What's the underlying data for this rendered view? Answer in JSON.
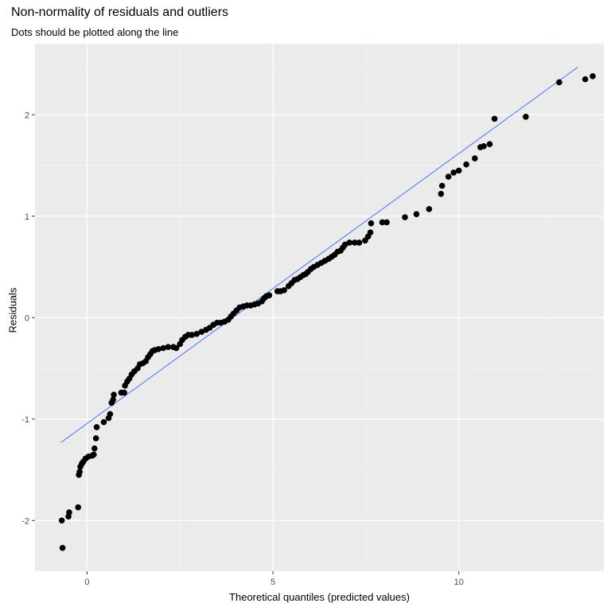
{
  "chart_data": {
    "type": "scatter",
    "title": "Non-normality of residuals and outliers",
    "subtitle": "Dots should be plotted along the line",
    "xlabel": "Theoretical quantiles (predicted values)",
    "ylabel": "Residuals",
    "xlim": [
      -1.4,
      13.9
    ],
    "ylim": [
      -2.5,
      2.7
    ],
    "x_ticks": [
      0,
      5,
      10
    ],
    "y_ticks": [
      -2,
      -1,
      0,
      1,
      2
    ],
    "grid": true,
    "background": "#ebebeb",
    "point_color": "#000000",
    "line_color": "#3366ff",
    "reference_line": {
      "x": [
        -0.7,
        13.2
      ],
      "y": [
        -1.23,
        2.47
      ]
    },
    "points": [
      [
        -0.66,
        -2.27
      ],
      [
        -0.68,
        -2.0
      ],
      [
        -0.5,
        -1.96
      ],
      [
        -0.48,
        -1.92
      ],
      [
        -0.24,
        -1.87
      ],
      [
        -0.22,
        -1.55
      ],
      [
        -0.2,
        -1.52
      ],
      [
        -0.18,
        -1.47
      ],
      [
        -0.14,
        -1.44
      ],
      [
        -0.1,
        -1.42
      ],
      [
        -0.04,
        -1.39
      ],
      [
        0.04,
        -1.37
      ],
      [
        0.14,
        -1.36
      ],
      [
        0.18,
        -1.35
      ],
      [
        0.2,
        -1.29
      ],
      [
        0.24,
        -1.19
      ],
      [
        0.26,
        -1.08
      ],
      [
        0.45,
        -1.03
      ],
      [
        0.58,
        -0.99
      ],
      [
        0.62,
        -0.95
      ],
      [
        0.66,
        -0.84
      ],
      [
        0.7,
        -0.81
      ],
      [
        0.72,
        -0.76
      ],
      [
        0.92,
        -0.74
      ],
      [
        1.0,
        -0.74
      ],
      [
        1.02,
        -0.67
      ],
      [
        1.08,
        -0.63
      ],
      [
        1.14,
        -0.6
      ],
      [
        1.2,
        -0.56
      ],
      [
        1.27,
        -0.53
      ],
      [
        1.36,
        -0.5
      ],
      [
        1.42,
        -0.46
      ],
      [
        1.5,
        -0.45
      ],
      [
        1.58,
        -0.43
      ],
      [
        1.64,
        -0.39
      ],
      [
        1.7,
        -0.36
      ],
      [
        1.76,
        -0.33
      ],
      [
        1.82,
        -0.32
      ],
      [
        1.92,
        -0.31
      ],
      [
        2.05,
        -0.3
      ],
      [
        2.18,
        -0.29
      ],
      [
        2.32,
        -0.29
      ],
      [
        2.4,
        -0.3
      ],
      [
        2.5,
        -0.26
      ],
      [
        2.56,
        -0.22
      ],
      [
        2.64,
        -0.19
      ],
      [
        2.72,
        -0.17
      ],
      [
        2.82,
        -0.17
      ],
      [
        2.95,
        -0.16
      ],
      [
        3.08,
        -0.14
      ],
      [
        3.2,
        -0.12
      ],
      [
        3.3,
        -0.1
      ],
      [
        3.4,
        -0.07
      ],
      [
        3.5,
        -0.05
      ],
      [
        3.6,
        -0.05
      ],
      [
        3.7,
        -0.04
      ],
      [
        3.8,
        -0.02
      ],
      [
        3.87,
        0.01
      ],
      [
        3.94,
        0.04
      ],
      [
        4.02,
        0.07
      ],
      [
        4.1,
        0.1
      ],
      [
        4.2,
        0.11
      ],
      [
        4.3,
        0.12
      ],
      [
        4.4,
        0.12
      ],
      [
        4.5,
        0.13
      ],
      [
        4.6,
        0.14
      ],
      [
        4.7,
        0.16
      ],
      [
        4.76,
        0.19
      ],
      [
        4.82,
        0.21
      ],
      [
        4.9,
        0.22
      ],
      [
        5.12,
        0.26
      ],
      [
        5.2,
        0.26
      ],
      [
        5.3,
        0.27
      ],
      [
        5.42,
        0.31
      ],
      [
        5.5,
        0.34
      ],
      [
        5.58,
        0.37
      ],
      [
        5.66,
        0.38
      ],
      [
        5.74,
        0.4
      ],
      [
        5.82,
        0.42
      ],
      [
        5.88,
        0.43
      ],
      [
        5.94,
        0.45
      ],
      [
        6.02,
        0.48
      ],
      [
        6.1,
        0.5
      ],
      [
        6.2,
        0.52
      ],
      [
        6.3,
        0.54
      ],
      [
        6.4,
        0.56
      ],
      [
        6.5,
        0.58
      ],
      [
        6.58,
        0.6
      ],
      [
        6.66,
        0.62
      ],
      [
        6.74,
        0.65
      ],
      [
        6.82,
        0.66
      ],
      [
        6.88,
        0.69
      ],
      [
        6.94,
        0.72
      ],
      [
        7.06,
        0.74
      ],
      [
        7.2,
        0.74
      ],
      [
        7.32,
        0.74
      ],
      [
        7.48,
        0.76
      ],
      [
        7.56,
        0.8
      ],
      [
        7.62,
        0.84
      ],
      [
        7.64,
        0.93
      ],
      [
        7.94,
        0.94
      ],
      [
        8.06,
        0.94
      ],
      [
        8.55,
        0.99
      ],
      [
        8.86,
        1.02
      ],
      [
        9.2,
        1.07
      ],
      [
        9.52,
        1.22
      ],
      [
        9.55,
        1.3
      ],
      [
        9.72,
        1.39
      ],
      [
        9.86,
        1.43
      ],
      [
        10.0,
        1.45
      ],
      [
        10.2,
        1.51
      ],
      [
        10.43,
        1.57
      ],
      [
        10.58,
        1.68
      ],
      [
        10.67,
        1.69
      ],
      [
        10.83,
        1.71
      ],
      [
        10.96,
        1.96
      ],
      [
        11.8,
        1.98
      ],
      [
        12.7,
        2.32
      ],
      [
        13.4,
        2.35
      ],
      [
        13.6,
        2.38
      ]
    ]
  }
}
